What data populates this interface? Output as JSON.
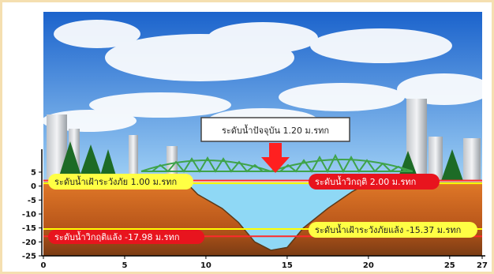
{
  "current_level": {
    "label": "ระดับน้ำปัจจุบัน 1.20 ม.รทก",
    "value": 1.2
  },
  "reference_lines": [
    {
      "key": "flood_watch",
      "label": "ระดับน้ำเฝ้าระวังภัย 1.00 ม.รทก",
      "value": 1.0,
      "color": "#ffff00",
      "label_bg": "#ffff44",
      "label_fg": "#222222"
    },
    {
      "key": "flood_critical",
      "label": "ระดับน้ำวิกฤติ 2.00 ม.รทก",
      "value": 2.0,
      "color": "#ff2a2a",
      "label_bg": "#e8141e",
      "label_fg": "#ffffff"
    },
    {
      "key": "drought_watch",
      "label": "ระดับน้ำเฝ้าระวังภัยแล้ง -15.37 ม.รทก",
      "value": -15.37,
      "color": "#ffff00",
      "label_bg": "#ffff44",
      "label_fg": "#222222"
    },
    {
      "key": "drought_critical",
      "label": "ระดับน้ำวิกฤติแล้ง -17.98 ม.รทก",
      "value": -17.98,
      "color": "#ff2a2a",
      "label_bg": "#e8141e",
      "label_fg": "#ffffff"
    }
  ],
  "chart_data": {
    "type": "area",
    "y_ticks": [
      "5",
      "0",
      "-5",
      "-10",
      "-15",
      "-20",
      "-25"
    ],
    "x_ticks": [
      "0",
      "5",
      "10",
      "15",
      "20",
      "25",
      "27"
    ],
    "ylim": [
      -25,
      5
    ],
    "xlim": [
      0,
      27
    ],
    "riverbed_profile": {
      "x": [
        0,
        8,
        9,
        9.5,
        11,
        12,
        13,
        14,
        15,
        16,
        17.5,
        19,
        20,
        27
      ],
      "y": [
        1.2,
        1.2,
        0,
        -3,
        -8,
        -13,
        -20,
        -23,
        -22,
        -15,
        -8,
        -2,
        1.2,
        1.2
      ]
    },
    "water_level": 1.2
  },
  "colors": {
    "sky_top": "#1f6fd6",
    "sky_bottom": "#8cc4f2",
    "ground": "#d2691e",
    "ground_dark": "#8a4a20",
    "water": "#8fd8f5"
  }
}
